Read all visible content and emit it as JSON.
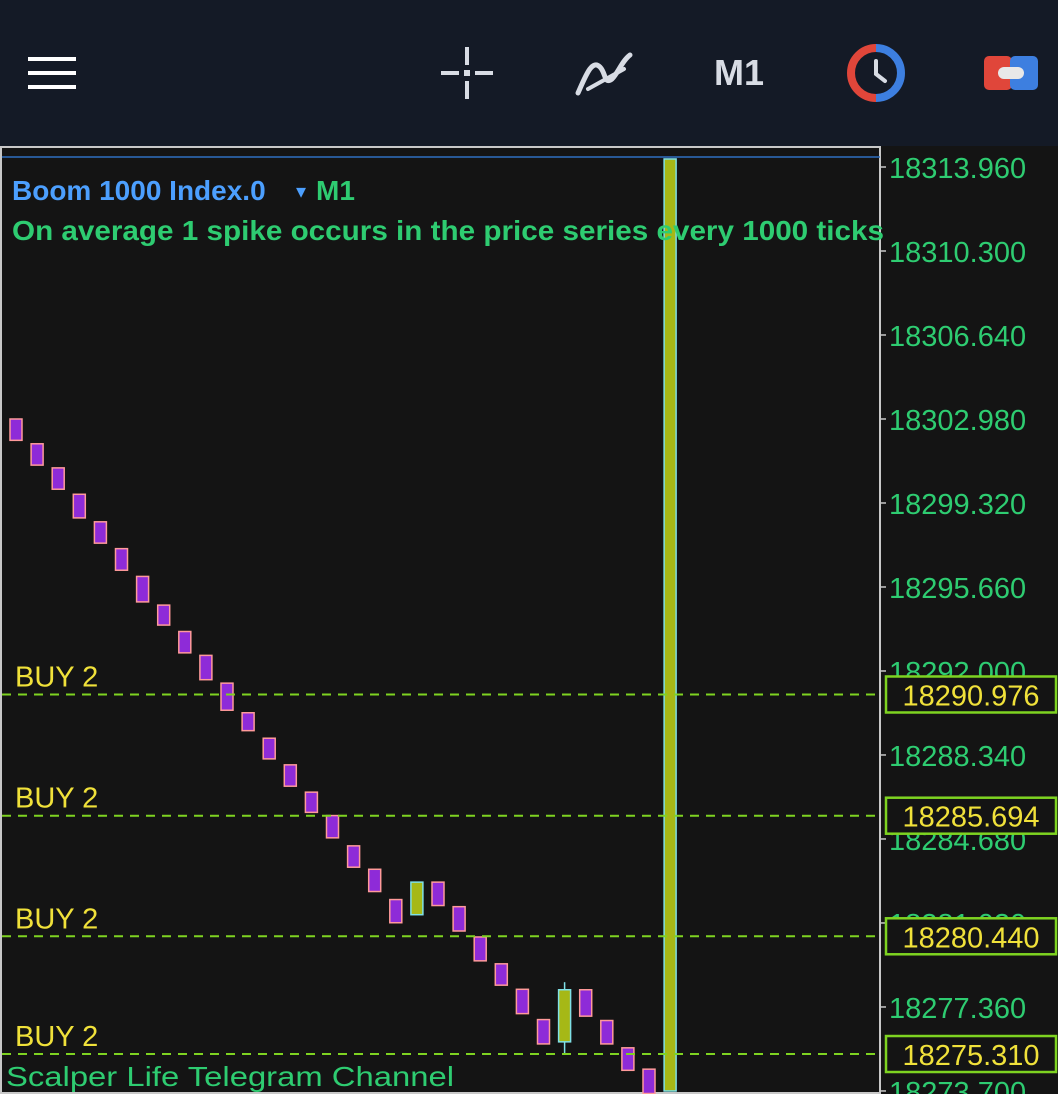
{
  "toolbar": {
    "menu_icon": "menu-icon",
    "crosshair_icon": "crosshair-icon",
    "indicators_icon": "indicators-icon",
    "timeframe": "M1",
    "clock_icon": "clock-icon",
    "trade_icon": "trade-icon"
  },
  "chart_info": {
    "symbol": "Boom 1000 Index.0",
    "dropdown": "▾",
    "timeframe": "M1",
    "description": "On average 1 spike occurs in the price series every 1000 ticks"
  },
  "watermark": "Scalper Life Telegram Channel",
  "colors": {
    "background": "#141414",
    "toolbar": "#141a26",
    "axis_text": "#2ecc71",
    "bear_body": "#8e2bd8",
    "bear_outline": "#ff9a9a",
    "bull_body": "#a6b816",
    "bull_outline": "#7fe0e6",
    "order_line": "#7ed321",
    "order_label": "#f0e13a",
    "symbol_text": "#4c9ffe"
  },
  "chart_data": {
    "type": "candlestick",
    "ylim": [
      18274.5,
      18315.0
    ],
    "y_ticks": [
      "18313.960",
      "18310.300",
      "18306.640",
      "18302.980",
      "18299.320",
      "18295.660",
      "18292.000",
      "18288.340",
      "18284.680",
      "18281.020",
      "18277.360",
      "18273.700"
    ],
    "order_lines": [
      {
        "label": "BUY 2",
        "price": "18290.976"
      },
      {
        "label": "BUY 2",
        "price": "18285.694"
      },
      {
        "label": "BUY 2",
        "price": "18280.440"
      },
      {
        "label": "BUY 2",
        "price": "18275.310"
      }
    ],
    "candles": [
      {
        "o": 18302.98,
        "h": 18302.98,
        "c": 18302.05,
        "l": 18302.05
      },
      {
        "o": 18301.9,
        "h": 18301.9,
        "c": 18300.97,
        "l": 18300.97
      },
      {
        "o": 18300.85,
        "h": 18300.85,
        "c": 18299.92,
        "l": 18299.92
      },
      {
        "o": 18299.7,
        "h": 18299.7,
        "c": 18298.67,
        "l": 18298.67
      },
      {
        "o": 18298.5,
        "h": 18298.5,
        "c": 18297.57,
        "l": 18297.57
      },
      {
        "o": 18297.33,
        "h": 18297.33,
        "c": 18296.39,
        "l": 18296.39
      },
      {
        "o": 18296.12,
        "h": 18296.12,
        "c": 18295.01,
        "l": 18295.01
      },
      {
        "o": 18294.87,
        "h": 18294.87,
        "c": 18294.0,
        "l": 18294.0
      },
      {
        "o": 18293.72,
        "h": 18293.72,
        "c": 18292.79,
        "l": 18292.79
      },
      {
        "o": 18292.68,
        "h": 18292.68,
        "c": 18291.62,
        "l": 18291.62
      },
      {
        "o": 18291.47,
        "h": 18291.47,
        "c": 18290.29,
        "l": 18290.29
      },
      {
        "o": 18290.18,
        "h": 18290.18,
        "c": 18289.4,
        "l": 18289.4
      },
      {
        "o": 18289.07,
        "h": 18289.07,
        "c": 18288.17,
        "l": 18288.17
      },
      {
        "o": 18287.91,
        "h": 18287.91,
        "c": 18286.98,
        "l": 18286.98
      },
      {
        "o": 18286.72,
        "h": 18286.72,
        "c": 18285.84,
        "l": 18285.84
      },
      {
        "o": 18285.7,
        "h": 18285.7,
        "c": 18284.73,
        "l": 18284.73
      },
      {
        "o": 18284.38,
        "h": 18284.38,
        "c": 18283.45,
        "l": 18283.45
      },
      {
        "o": 18283.36,
        "h": 18283.36,
        "c": 18282.39,
        "l": 18282.39
      },
      {
        "o": 18282.04,
        "h": 18282.04,
        "c": 18281.03,
        "l": 18281.03
      },
      {
        "o": 18281.38,
        "h": 18282.8,
        "c": 18282.8,
        "l": 18281.38,
        "bull": true
      },
      {
        "o": 18282.8,
        "h": 18282.8,
        "c": 18281.78,
        "l": 18281.78
      },
      {
        "o": 18281.73,
        "h": 18281.73,
        "c": 18280.67,
        "l": 18280.67
      },
      {
        "o": 18280.41,
        "h": 18280.41,
        "c": 18279.37,
        "l": 18279.37
      },
      {
        "o": 18279.24,
        "h": 18279.24,
        "c": 18278.31,
        "l": 18278.31
      },
      {
        "o": 18278.13,
        "h": 18278.13,
        "c": 18277.07,
        "l": 18277.07
      },
      {
        "o": 18276.81,
        "h": 18276.81,
        "c": 18275.75,
        "l": 18275.75
      },
      {
        "o": 18275.84,
        "h": 18278.44,
        "c": 18278.11,
        "l": 18275.35,
        "bull": true
      },
      {
        "o": 18278.11,
        "h": 18278.11,
        "c": 18276.96,
        "l": 18276.96
      },
      {
        "o": 18276.77,
        "h": 18276.77,
        "c": 18275.75,
        "l": 18275.75
      },
      {
        "o": 18275.58,
        "h": 18275.58,
        "c": 18274.6,
        "l": 18274.6
      },
      {
        "o": 18274.65,
        "h": 18274.65,
        "c": 18273.59,
        "l": 18273.59
      },
      {
        "o": 18273.7,
        "h": 18314.31,
        "c": 18314.31,
        "l": 18273.7,
        "bull": true
      }
    ]
  }
}
